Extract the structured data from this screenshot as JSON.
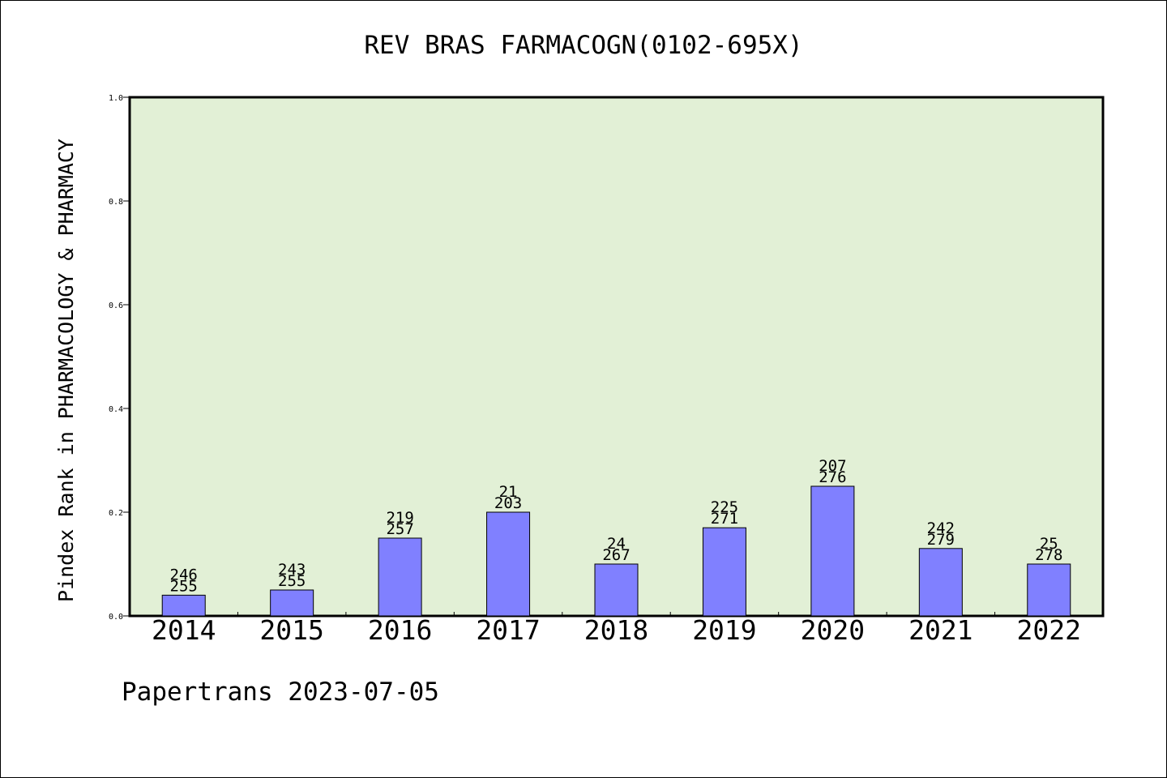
{
  "chart_data": {
    "type": "bar",
    "title": "REV BRAS FARMACOGN(0102-695X)",
    "ylabel": "Pindex Rank in PHARMACOLOGY & PHARMACY",
    "xlabel": "",
    "categories": [
      "2014",
      "2015",
      "2016",
      "2017",
      "2018",
      "2019",
      "2020",
      "2021",
      "2022"
    ],
    "values": [
      0.04,
      0.05,
      0.15,
      0.2,
      0.1,
      0.17,
      0.25,
      0.13,
      0.1
    ],
    "rank_labels": [
      "246",
      "243",
      "219",
      "21",
      "24",
      "225",
      "207",
      "242",
      "25"
    ],
    "total_labels": [
      "255",
      "255",
      "257",
      "203",
      "267",
      "271",
      "276",
      "279",
      "278"
    ],
    "ylim": [
      0,
      1
    ],
    "yticks": [
      "0.0",
      "0.2",
      "0.4",
      "0.6",
      "0.8",
      "1.0"
    ],
    "grid": false,
    "colors": {
      "plot_background": "#e2f0d6",
      "bar_fill": "#8080ff",
      "bar_stroke": "#000000"
    }
  },
  "footer": "Papertrans 2023-07-05"
}
